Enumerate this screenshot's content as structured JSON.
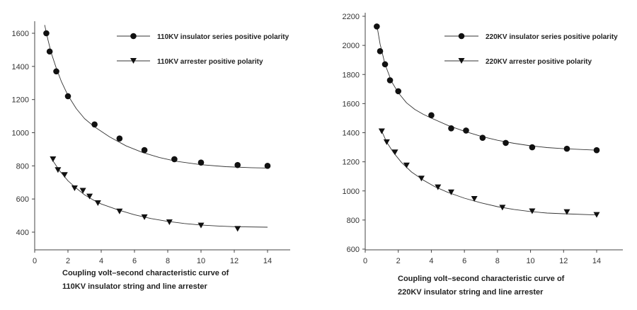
{
  "chart_data": [
    {
      "type": "scatter",
      "caption": [
        "Coupling volt–second characteristic curve of",
        "110KV insulator string and line arrester"
      ],
      "xlim": [
        0,
        15
      ],
      "ylim": [
        300,
        1650
      ],
      "xticks": [
        0,
        2,
        4,
        6,
        8,
        10,
        12,
        14
      ],
      "yticks": [
        400,
        600,
        800,
        1000,
        1200,
        1400,
        1600
      ],
      "legend_position": "top-right",
      "series": [
        {
          "name": "110KV insulator series positive polarity",
          "marker": "circle",
          "x": [
            0.7,
            0.9,
            1.3,
            2.0,
            3.6,
            5.1,
            6.6,
            8.4,
            10.0,
            12.2,
            14.0
          ],
          "y": [
            1600,
            1490,
            1370,
            1220,
            1050,
            965,
            895,
            840,
            820,
            805,
            800
          ],
          "curve_x": [
            0.6,
            0.8,
            1.0,
            1.3,
            1.6,
            2.0,
            2.5,
            3.0,
            3.6,
            4.5,
            5.5,
            6.5,
            7.5,
            8.5,
            10.0,
            11.5,
            13.0,
            14.0
          ],
          "curve_y": [
            1650,
            1560,
            1480,
            1390,
            1310,
            1225,
            1145,
            1085,
            1035,
            975,
            920,
            880,
            850,
            828,
            807,
            795,
            789,
            787
          ]
        },
        {
          "name": "110KV arrester positive polarity",
          "marker": "triangle-down",
          "x": [
            1.1,
            1.4,
            1.8,
            2.4,
            2.9,
            3.3,
            3.8,
            5.1,
            6.6,
            8.1,
            10.0,
            12.2
          ],
          "y": [
            840,
            775,
            745,
            665,
            650,
            615,
            575,
            525,
            490,
            460,
            440,
            420
          ],
          "curve_x": [
            1.1,
            1.5,
            2.0,
            2.5,
            3.0,
            3.5,
            4.0,
            5.0,
            6.0,
            7.0,
            8.0,
            9.0,
            10.0,
            11.0,
            12.0,
            14.0
          ],
          "curve_y": [
            830,
            770,
            710,
            665,
            625,
            595,
            570,
            535,
            505,
            482,
            465,
            452,
            443,
            437,
            433,
            430
          ]
        }
      ]
    },
    {
      "type": "scatter",
      "caption": [
        "Coupling volt–second characteristic curve of",
        "220KV insulator string and line arrester"
      ],
      "xlim": [
        0,
        15
      ],
      "ylim": [
        600,
        2200
      ],
      "xticks": [
        0,
        2,
        4,
        6,
        8,
        10,
        12,
        14
      ],
      "yticks": [
        600,
        800,
        1000,
        1200,
        1400,
        1600,
        1800,
        2000,
        2200
      ],
      "legend_position": "top-right",
      "series": [
        {
          "name": "220KV insulator series positive polarity",
          "marker": "circle",
          "x": [
            0.7,
            0.9,
            1.2,
            1.5,
            2.0,
            4.0,
            5.2,
            6.1,
            7.1,
            8.5,
            10.1,
            12.2,
            14.0
          ],
          "y": [
            2130,
            1960,
            1870,
            1760,
            1685,
            1520,
            1430,
            1415,
            1365,
            1330,
            1300,
            1290,
            1280
          ],
          "curve_x": [
            0.7,
            0.9,
            1.2,
            1.6,
            2.0,
            2.5,
            3.0,
            3.5,
            4.0,
            5.0,
            6.0,
            7.0,
            8.0,
            9.0,
            10.0,
            11.0,
            12.0,
            14.0
          ],
          "curve_y": [
            2140,
            2010,
            1870,
            1750,
            1675,
            1605,
            1560,
            1527,
            1500,
            1450,
            1410,
            1375,
            1348,
            1327,
            1310,
            1298,
            1290,
            1280
          ]
        },
        {
          "name": "220KV arrester positive polarity",
          "marker": "triangle-down",
          "x": [
            1.0,
            1.3,
            1.8,
            2.5,
            3.4,
            4.4,
            5.2,
            6.6,
            8.3,
            10.1,
            12.2,
            14.0
          ],
          "y": [
            1410,
            1335,
            1265,
            1175,
            1085,
            1025,
            990,
            945,
            885,
            860,
            855,
            835
          ],
          "curve_x": [
            1.0,
            1.3,
            1.7,
            2.2,
            2.8,
            3.5,
            4.2,
            5.0,
            6.0,
            7.0,
            8.0,
            9.0,
            10.0,
            11.0,
            12.0,
            14.0
          ],
          "curve_y": [
            1410,
            1335,
            1265,
            1195,
            1130,
            1075,
            1030,
            990,
            950,
            918,
            892,
            873,
            858,
            848,
            843,
            835
          ]
        }
      ]
    }
  ]
}
